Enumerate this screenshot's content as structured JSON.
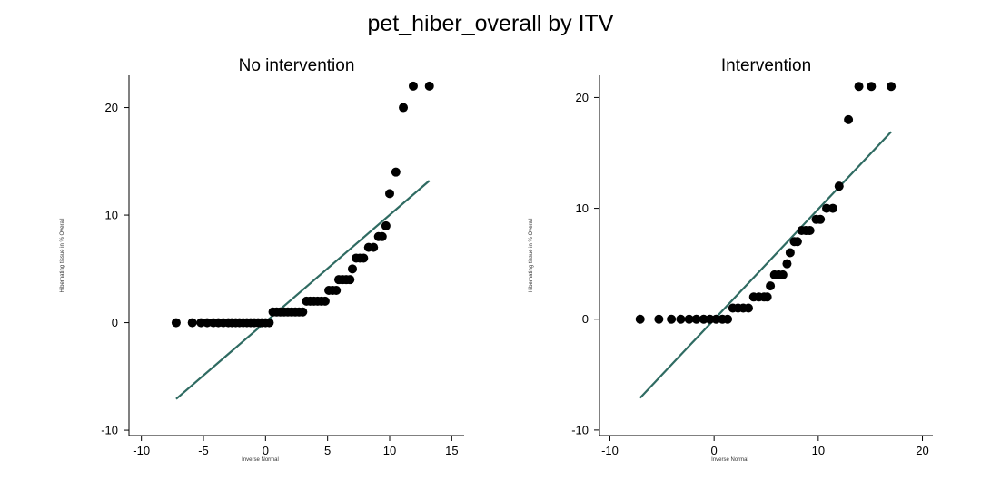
{
  "title": "pet_hiber_overall by ITV",
  "chart_data": [
    {
      "type": "scatter",
      "title": "No intervention",
      "xlabel": "Inverse Normal",
      "ylabel": "Hibernating tissue in % Overall",
      "xlim": [
        -11,
        16
      ],
      "ylim": [
        -10.5,
        23
      ],
      "xticks": [
        -10,
        -5,
        0,
        5,
        10,
        15
      ],
      "yticks": [
        -10,
        0,
        10,
        20
      ],
      "grid": false,
      "points": [
        [
          -7.2,
          0
        ],
        [
          -5.9,
          0
        ],
        [
          -5.2,
          0
        ],
        [
          -4.7,
          0
        ],
        [
          -4.2,
          0
        ],
        [
          -3.8,
          0
        ],
        [
          -3.4,
          0
        ],
        [
          -3.0,
          0
        ],
        [
          -2.7,
          0
        ],
        [
          -2.4,
          0
        ],
        [
          -2.1,
          0
        ],
        [
          -1.8,
          0
        ],
        [
          -1.5,
          0
        ],
        [
          -1.2,
          0
        ],
        [
          -0.9,
          0
        ],
        [
          -0.6,
          0
        ],
        [
          -0.3,
          0
        ],
        [
          0.0,
          0
        ],
        [
          0.3,
          0
        ],
        [
          0.6,
          1
        ],
        [
          0.9,
          1
        ],
        [
          1.2,
          1
        ],
        [
          1.5,
          1
        ],
        [
          1.8,
          1
        ],
        [
          2.1,
          1
        ],
        [
          2.4,
          1
        ],
        [
          2.7,
          1
        ],
        [
          3.0,
          1
        ],
        [
          3.3,
          2
        ],
        [
          3.6,
          2
        ],
        [
          3.9,
          2
        ],
        [
          4.2,
          2
        ],
        [
          4.5,
          2
        ],
        [
          4.8,
          2
        ],
        [
          5.1,
          3
        ],
        [
          5.4,
          3
        ],
        [
          5.7,
          3
        ],
        [
          5.9,
          4
        ],
        [
          6.2,
          4
        ],
        [
          6.5,
          4
        ],
        [
          6.8,
          4
        ],
        [
          7.0,
          5
        ],
        [
          7.3,
          6
        ],
        [
          7.6,
          6
        ],
        [
          7.9,
          6
        ],
        [
          8.3,
          7
        ],
        [
          8.7,
          7
        ],
        [
          9.1,
          8
        ],
        [
          9.4,
          8
        ],
        [
          9.7,
          9
        ],
        [
          10.0,
          12
        ],
        [
          10.5,
          14
        ],
        [
          11.1,
          20
        ],
        [
          11.9,
          22
        ],
        [
          13.2,
          22
        ]
      ],
      "fit_line": {
        "x": [
          -7.2,
          13.2
        ],
        "y": [
          -7.1,
          13.2
        ]
      },
      "marker_color": "#000000",
      "line_color": "#2f6b62"
    },
    {
      "type": "scatter",
      "title": "Intervention",
      "xlabel": "Inverse Normal",
      "ylabel": "Hibernating tissue in % Overall",
      "xlim": [
        -11,
        21
      ],
      "ylim": [
        -10.5,
        22
      ],
      "xticks": [
        -10,
        0,
        10,
        20
      ],
      "yticks": [
        -10,
        0,
        10,
        20
      ],
      "grid": false,
      "points": [
        [
          -7.1,
          0
        ],
        [
          -5.3,
          0
        ],
        [
          -4.1,
          0
        ],
        [
          -3.2,
          0
        ],
        [
          -2.4,
          0
        ],
        [
          -1.7,
          0
        ],
        [
          -1.0,
          0
        ],
        [
          -0.4,
          0
        ],
        [
          0.2,
          0
        ],
        [
          0.8,
          0
        ],
        [
          1.3,
          0
        ],
        [
          1.8,
          1
        ],
        [
          2.3,
          1
        ],
        [
          2.8,
          1
        ],
        [
          3.3,
          1
        ],
        [
          3.8,
          2
        ],
        [
          4.3,
          2
        ],
        [
          4.8,
          2
        ],
        [
          5.1,
          2
        ],
        [
          5.4,
          3
        ],
        [
          5.8,
          4
        ],
        [
          6.2,
          4
        ],
        [
          6.6,
          4
        ],
        [
          7.0,
          5
        ],
        [
          7.3,
          6
        ],
        [
          7.7,
          7
        ],
        [
          8.0,
          7
        ],
        [
          8.4,
          8
        ],
        [
          8.8,
          8
        ],
        [
          9.2,
          8
        ],
        [
          9.8,
          9
        ],
        [
          10.2,
          9
        ],
        [
          10.8,
          10
        ],
        [
          11.4,
          10
        ],
        [
          12.0,
          12
        ],
        [
          12.9,
          18
        ],
        [
          13.9,
          21
        ],
        [
          15.1,
          21
        ],
        [
          17.0,
          21
        ]
      ],
      "fit_line": {
        "x": [
          -7.1,
          17.0
        ],
        "y": [
          -7.1,
          16.9
        ]
      },
      "marker_color": "#000000",
      "line_color": "#2f6b62"
    }
  ]
}
